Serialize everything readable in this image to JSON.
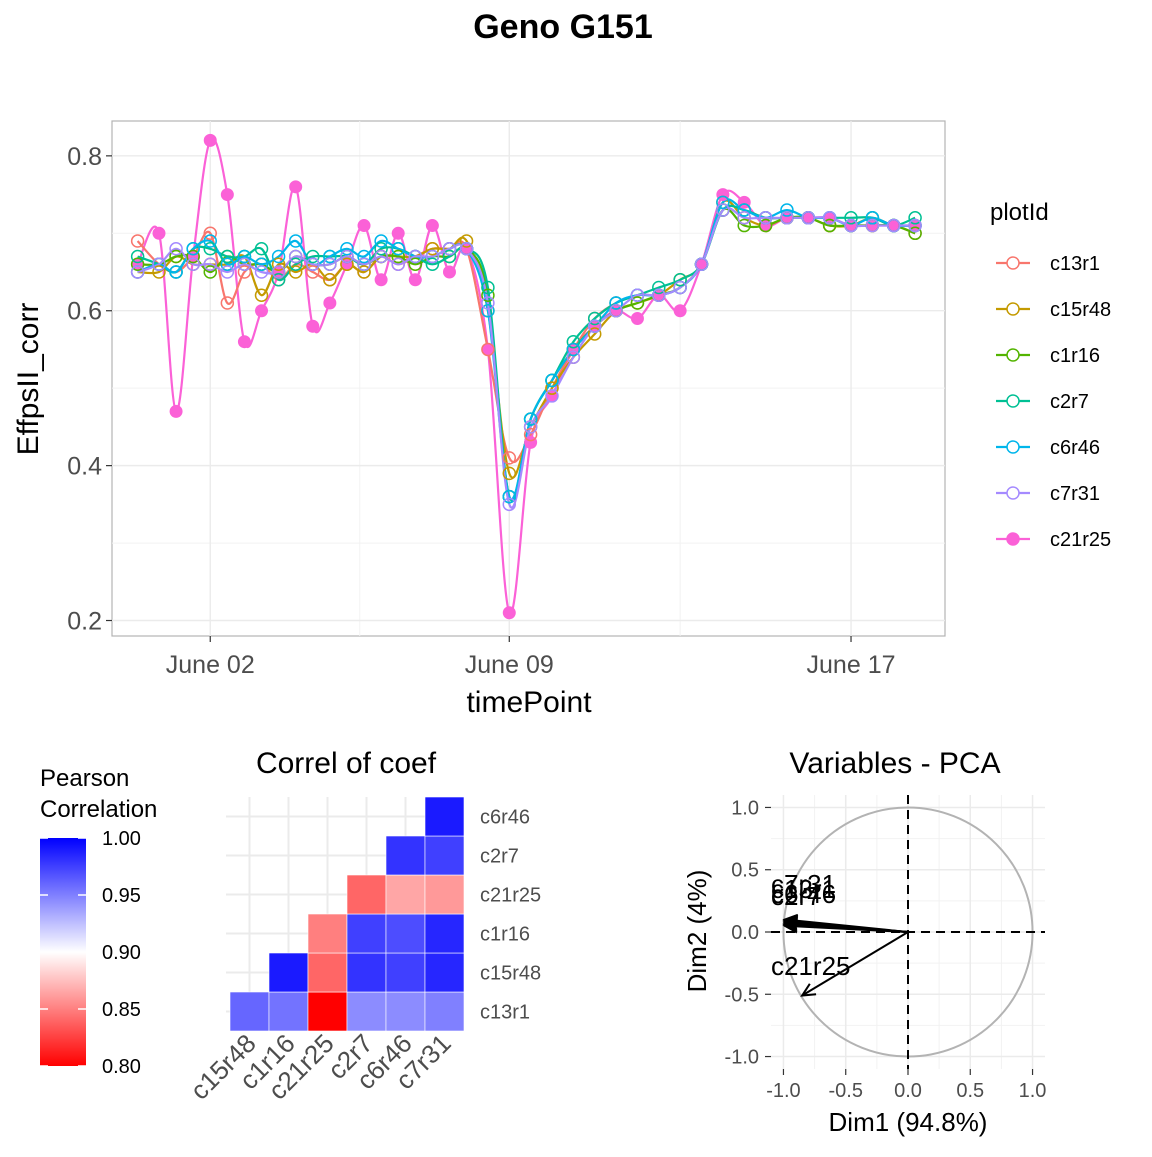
{
  "page_title": "Geno G151",
  "chart_data": [
    {
      "id": "timeseries",
      "type": "line",
      "title": "",
      "xlabel": "timePoint",
      "ylabel": "EffpsII_corr",
      "x_ticks": [
        "June 02",
        "June 09",
        "June 17"
      ],
      "x_tick_days": [
        2,
        9,
        17
      ],
      "xlim_days": [
        -0.3,
        19.2
      ],
      "y_ticks": [
        "0.2",
        "0.4",
        "0.6",
        "0.8"
      ],
      "y_tick_values": [
        0.2,
        0.4,
        0.6,
        0.8
      ],
      "ylim": [
        0.18,
        0.845
      ],
      "grid": true,
      "legend_title": "plotId",
      "legend_position": "right",
      "x_days": [
        0.3,
        0.8,
        1.2,
        1.6,
        2.0,
        2.4,
        2.8,
        3.2,
        3.6,
        4.0,
        4.4,
        4.8,
        5.2,
        5.6,
        6.0,
        6.4,
        6.8,
        7.2,
        7.6,
        8.0,
        8.5,
        9.0,
        9.5,
        10.0,
        10.5,
        11.0,
        11.5,
        12.0,
        12.5,
        13.0,
        13.5,
        14.0,
        14.5,
        15.0,
        15.5,
        16.0,
        16.5,
        17.0,
        17.5,
        18.0,
        18.5
      ],
      "series": [
        {
          "name": "c13r1",
          "color": "#F8766D",
          "filled": false,
          "values": [
            0.69,
            0.66,
            0.65,
            0.67,
            0.7,
            0.61,
            0.65,
            0.66,
            0.64,
            0.66,
            0.65,
            0.64,
            0.66,
            0.65,
            0.67,
            0.66,
            0.67,
            0.68,
            0.68,
            0.68,
            0.55,
            0.41,
            0.44,
            0.5,
            0.55,
            0.59,
            0.61,
            0.62,
            0.62,
            0.63,
            0.66,
            0.73,
            0.73,
            0.72,
            0.72,
            0.72,
            0.71,
            0.71,
            0.71,
            0.71,
            0.7
          ]
        },
        {
          "name": "c15r48",
          "color": "#C49A00",
          "filled": false,
          "values": [
            0.65,
            0.65,
            0.67,
            0.66,
            0.66,
            0.66,
            0.67,
            0.62,
            0.66,
            0.65,
            0.66,
            0.64,
            0.66,
            0.65,
            0.67,
            0.67,
            0.67,
            0.68,
            0.68,
            0.69,
            0.6,
            0.39,
            0.45,
            0.5,
            0.54,
            0.57,
            0.6,
            0.61,
            0.62,
            0.64,
            0.66,
            0.74,
            0.72,
            0.71,
            0.72,
            0.72,
            0.71,
            0.71,
            0.72,
            0.71,
            0.71
          ]
        },
        {
          "name": "c1r16",
          "color": "#53B400",
          "filled": false,
          "values": [
            0.66,
            0.66,
            0.67,
            0.67,
            0.65,
            0.67,
            0.66,
            0.66,
            0.65,
            0.67,
            0.66,
            0.66,
            0.67,
            0.66,
            0.67,
            0.67,
            0.66,
            0.67,
            0.67,
            0.68,
            0.62,
            0.36,
            0.46,
            0.51,
            0.55,
            0.58,
            0.6,
            0.61,
            0.62,
            0.63,
            0.66,
            0.73,
            0.71,
            0.71,
            0.72,
            0.72,
            0.71,
            0.71,
            0.71,
            0.71,
            0.7
          ]
        },
        {
          "name": "c2r7",
          "color": "#00C094",
          "filled": false,
          "values": [
            0.67,
            0.66,
            0.65,
            0.68,
            0.68,
            0.67,
            0.67,
            0.68,
            0.64,
            0.66,
            0.67,
            0.67,
            0.67,
            0.66,
            0.68,
            0.68,
            0.67,
            0.66,
            0.67,
            0.68,
            0.63,
            0.36,
            0.46,
            0.51,
            0.56,
            0.59,
            0.61,
            0.62,
            0.63,
            0.64,
            0.66,
            0.73,
            0.73,
            0.72,
            0.72,
            0.72,
            0.72,
            0.72,
            0.72,
            0.71,
            0.72
          ]
        },
        {
          "name": "c6r46",
          "color": "#00B6EB",
          "filled": false,
          "values": [
            0.65,
            0.66,
            0.65,
            0.68,
            0.69,
            0.66,
            0.67,
            0.66,
            0.67,
            0.69,
            0.66,
            0.67,
            0.68,
            0.67,
            0.69,
            0.68,
            0.67,
            0.67,
            0.68,
            0.68,
            0.6,
            0.36,
            0.46,
            0.51,
            0.55,
            0.58,
            0.61,
            0.62,
            0.62,
            0.63,
            0.66,
            0.74,
            0.73,
            0.72,
            0.73,
            0.72,
            0.72,
            0.71,
            0.72,
            0.71,
            0.71
          ]
        },
        {
          "name": "c7r31",
          "color": "#A58AFF",
          "filled": false,
          "values": [
            0.65,
            0.66,
            0.68,
            0.66,
            0.66,
            0.65,
            0.66,
            0.65,
            0.65,
            0.67,
            0.66,
            0.66,
            0.67,
            0.66,
            0.67,
            0.66,
            0.67,
            0.67,
            0.68,
            0.68,
            0.61,
            0.35,
            0.45,
            0.49,
            0.54,
            0.58,
            0.6,
            0.62,
            0.62,
            0.63,
            0.66,
            0.73,
            0.72,
            0.72,
            0.72,
            0.72,
            0.72,
            0.71,
            0.71,
            0.71,
            0.71
          ]
        },
        {
          "name": "c21r25",
          "color": "#FB61D7",
          "filled": true,
          "values": [
            0.66,
            0.7,
            0.47,
            0.67,
            0.82,
            0.75,
            0.56,
            0.6,
            0.65,
            0.76,
            0.58,
            0.61,
            0.66,
            0.71,
            0.64,
            0.7,
            0.64,
            0.71,
            0.65,
            0.68,
            0.55,
            0.21,
            0.43,
            0.49,
            0.55,
            0.58,
            0.6,
            0.59,
            0.62,
            0.6,
            0.66,
            0.75,
            0.74,
            0.71,
            0.72,
            0.72,
            0.72,
            0.71,
            0.71,
            0.71,
            0.71
          ]
        }
      ]
    },
    {
      "id": "correlation",
      "type": "heatmap",
      "title": "Correl of coef",
      "x_labels": [
        "c15r48",
        "c1r16",
        "c21r25",
        "c2r7",
        "c6r46",
        "c7r31"
      ],
      "y_labels": [
        "c13r1",
        "c15r48",
        "c1r16",
        "c21r25",
        "c2r7",
        "c6r46"
      ],
      "cells": [
        {
          "col": 0,
          "row": 0,
          "value": 0.96
        },
        {
          "col": 1,
          "row": 0,
          "value": 0.955
        },
        {
          "col": 2,
          "row": 0,
          "value": 0.8
        },
        {
          "col": 3,
          "row": 0,
          "value": 0.945
        },
        {
          "col": 4,
          "row": 0,
          "value": 0.945
        },
        {
          "col": 5,
          "row": 0,
          "value": 0.95
        },
        {
          "col": 1,
          "row": 1,
          "value": 0.99
        },
        {
          "col": 2,
          "row": 1,
          "value": 0.84
        },
        {
          "col": 3,
          "row": 1,
          "value": 0.98
        },
        {
          "col": 4,
          "row": 1,
          "value": 0.975
        },
        {
          "col": 5,
          "row": 1,
          "value": 0.985
        },
        {
          "col": 2,
          "row": 2,
          "value": 0.85
        },
        {
          "col": 3,
          "row": 2,
          "value": 0.975
        },
        {
          "col": 4,
          "row": 2,
          "value": 0.97
        },
        {
          "col": 5,
          "row": 2,
          "value": 0.985
        },
        {
          "col": 3,
          "row": 3,
          "value": 0.84
        },
        {
          "col": 4,
          "row": 3,
          "value": 0.865
        },
        {
          "col": 5,
          "row": 3,
          "value": 0.86
        },
        {
          "col": 4,
          "row": 4,
          "value": 0.98
        },
        {
          "col": 5,
          "row": 4,
          "value": 0.975
        },
        {
          "col": 5,
          "row": 5,
          "value": 0.99
        }
      ],
      "legend_title": [
        "Pearson",
        "Correlation"
      ],
      "legend_ticks": [
        "1.00",
        "0.95",
        "0.90",
        "0.85",
        "0.80"
      ],
      "legend_tick_values": [
        1.0,
        0.95,
        0.9,
        0.85,
        0.8
      ],
      "value_range": [
        0.8,
        1.0
      ],
      "colors": {
        "low": "#FF0000",
        "mid": "#FFFFFF",
        "high": "#0000FF"
      },
      "midpoint": 0.9
    },
    {
      "id": "pca",
      "type": "scatter",
      "title": "Variables - PCA",
      "xlabel": "Dim1 (94.8%)",
      "ylabel": "Dim2 (4%)",
      "x_ticks": [
        "-1.0",
        "-0.5",
        "0.0",
        "0.5",
        "1.0"
      ],
      "y_ticks": [
        "-1.0",
        "-0.5",
        "0.0",
        "0.5",
        "1.0"
      ],
      "tick_values": [
        -1.0,
        -0.5,
        0.0,
        0.5,
        1.0
      ],
      "xlim": [
        -1.1,
        1.1
      ],
      "ylim": [
        -1.1,
        1.1
      ],
      "arrows": [
        {
          "label": "c13r1",
          "x": -0.99,
          "y": 0.09
        },
        {
          "label": "c15r48",
          "x": -0.99,
          "y": 0.07
        },
        {
          "label": "c1r16",
          "x": -0.99,
          "y": 0.08
        },
        {
          "label": "c2r7",
          "x": -0.99,
          "y": 0.06
        },
        {
          "label": "c6r46",
          "x": -0.99,
          "y": 0.05
        },
        {
          "label": "c7r31",
          "x": -0.99,
          "y": 0.1
        },
        {
          "label": "c21r25",
          "x": -0.85,
          "y": -0.51
        }
      ],
      "visible_labels": {
        "stack_a": "c7r31",
        "stack_b": "c6r46",
        "stack_c": "c13r1",
        "stack_d": "c2r7",
        "bottom": "c21r25"
      }
    }
  ]
}
